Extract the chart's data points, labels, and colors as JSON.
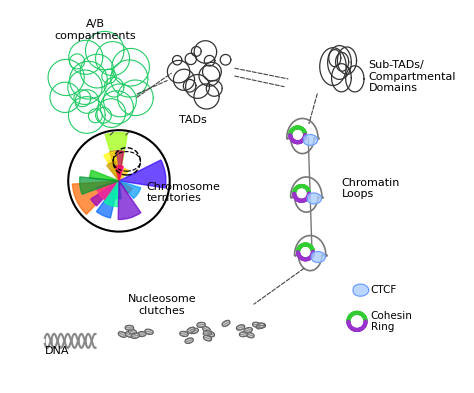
{
  "bg_color": "#ffffff",
  "title": "",
  "labels": {
    "ab_compartments": "A/B\ncompartments",
    "tads": "TADs",
    "sub_tads": "Sub-TADs/\nCompartmental\nDomains",
    "chromatin_loops": "Chromatin\nLoops",
    "nucleosome_clutches": "Nucleosome\nclutches",
    "chromosome_territories": "Chromosome\nterritories",
    "dna": "DNA",
    "ctcf": "CTCF",
    "cohesin_ring": "Cohesin\nRing"
  },
  "colors": {
    "green_chromatin": "#22cc66",
    "dark_chromatin": "#333333",
    "dna_helix": "#aaaaaa",
    "nucleosome": "#999999",
    "ctcf_blue": "#6699ff",
    "ctcf_blue_light": "#aaccff",
    "cohesin_green": "#33cc33",
    "cohesin_purple": "#9933cc",
    "loop_line": "#777777",
    "dashed_arrow": "#444444"
  }
}
